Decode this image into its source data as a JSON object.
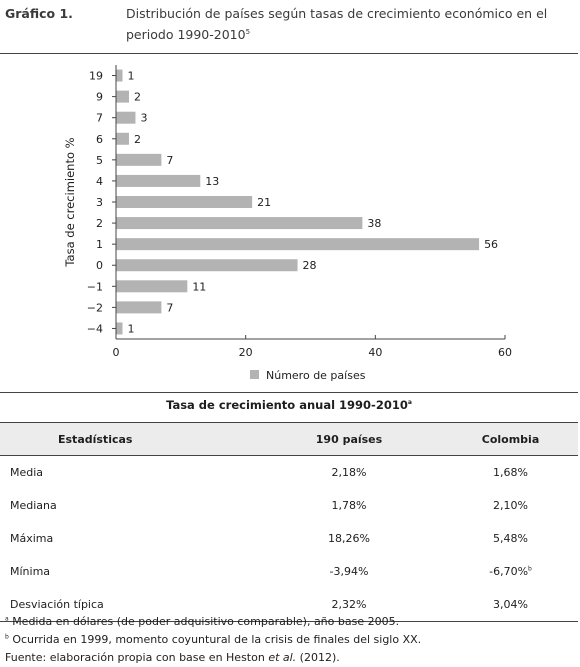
{
  "header": {
    "label": "Gráfico 1.",
    "title": "Distribución de países según tasas de crecimiento económico en el periodo 1990-2010",
    "title_sup": "5"
  },
  "chart_data": {
    "type": "bar",
    "orientation": "horizontal",
    "ylabel": "Tasa de crecimiento %",
    "xlabel": "",
    "categories": [
      "19",
      "9",
      "7",
      "6",
      "5",
      "4",
      "3",
      "2",
      "1",
      "0",
      "-1",
      "-2",
      "-4"
    ],
    "series": [
      {
        "name": "Número de países",
        "values": [
          1,
          2,
          3,
          2,
          7,
          13,
          21,
          38,
          56,
          28,
          11,
          7,
          1
        ]
      }
    ],
    "xlim": [
      0,
      60
    ],
    "xticks": [
      "0",
      "20",
      "40",
      "60"
    ],
    "grid": false,
    "legend": "bottom",
    "bar_color": "#b3b3b3"
  },
  "table": {
    "title": "Tasa de crecimiento anual 1990-2010",
    "title_sup": "a",
    "headers": [
      "Estadísticas",
      "190 países",
      "Colombia"
    ],
    "rows": [
      [
        "Media",
        "2,18%",
        "1,68%"
      ],
      [
        "Mediana",
        "1,78%",
        "2,10%"
      ],
      [
        "Máxima",
        "18,26%",
        "5,48%"
      ],
      [
        "Mínima",
        "-3,94%",
        "-6,70%"
      ],
      [
        "Desviación típica",
        "2,32%",
        "3,04%"
      ]
    ],
    "minima_colombia_sup": "b"
  },
  "notes": {
    "a_mark": "a",
    "a": "Medida en dólares (de poder adquisitivo comparable), año base 2005.",
    "b_mark": "b",
    "b": "Ocurrida en 1999, momento coyuntural de la crisis de finales del siglo XX.",
    "source_prefix": "Fuente: elaboración propia con base en Heston ",
    "source_italic": "et al.",
    "source_suffix": " (2012)."
  }
}
